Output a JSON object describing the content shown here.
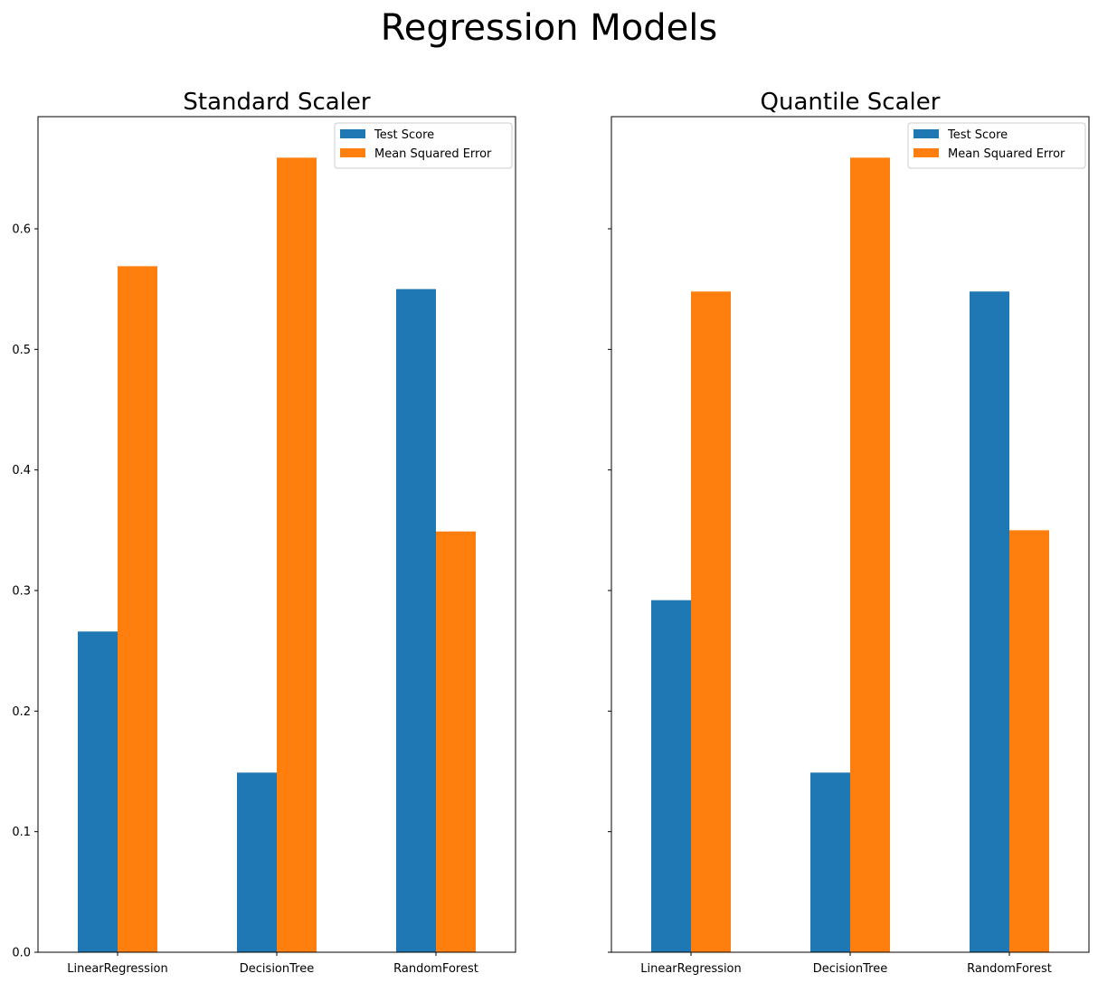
{
  "figure": {
    "title": "Regression Models"
  },
  "colors": {
    "test_score": "#1f77b4",
    "mse": "#ff7f0e"
  },
  "chart_data": [
    {
      "type": "bar",
      "title": "Standard Scaler",
      "categories": [
        "LinearRegression",
        "DecisionTree",
        "RandomForest"
      ],
      "series": [
        {
          "name": "Test Score",
          "values": [
            0.266,
            0.149,
            0.55
          ]
        },
        {
          "name": "Mean Squared Error",
          "values": [
            0.569,
            0.659,
            0.349
          ]
        }
      ],
      "ylim": [
        0,
        0.693
      ],
      "yticks": [
        0.0,
        0.1,
        0.2,
        0.3,
        0.4,
        0.5,
        0.6
      ],
      "ytick_labels": [
        "0.0",
        "0.1",
        "0.2",
        "0.3",
        "0.4",
        "0.5",
        "0.6"
      ],
      "legend": "top-right",
      "grid": false
    },
    {
      "type": "bar",
      "title": "Quantile Scaler",
      "categories": [
        "LinearRegression",
        "DecisionTree",
        "RandomForest"
      ],
      "series": [
        {
          "name": "Test Score",
          "values": [
            0.292,
            0.149,
            0.548
          ]
        },
        {
          "name": "Mean Squared Error",
          "values": [
            0.548,
            0.659,
            0.35
          ]
        }
      ],
      "ylim": [
        0,
        0.693
      ],
      "yticks": [
        0.0,
        0.1,
        0.2,
        0.3,
        0.4,
        0.5,
        0.6
      ],
      "ytick_labels": [],
      "legend": "top-right",
      "grid": false,
      "sharey": true
    }
  ]
}
